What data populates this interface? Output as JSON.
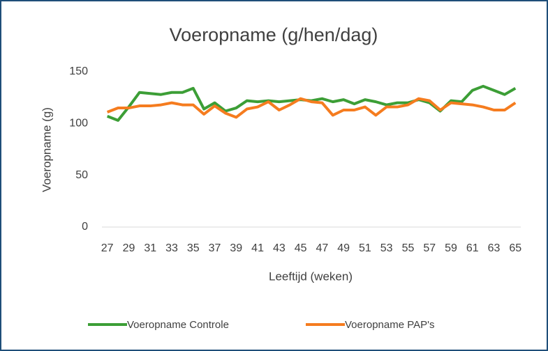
{
  "chart_data": {
    "type": "line",
    "title": "Voeropname (g/hen/dag)",
    "x_label": "Leeftijd (weken)",
    "y_label": "Voeropname (g)",
    "categories": [
      "27",
      null,
      "29",
      null,
      "31",
      null,
      "33",
      null,
      "35",
      null,
      "37",
      null,
      "39",
      null,
      "41",
      null,
      "43",
      null,
      "45",
      null,
      "47",
      null,
      "49",
      null,
      "51",
      null,
      "53",
      null,
      "55",
      null,
      "57",
      null,
      "59",
      null,
      "61",
      null,
      "63",
      null,
      "65"
    ],
    "series": [
      {
        "name": "Voeropname Controle",
        "color": "#3c9e36",
        "values": [
          107,
          103,
          116,
          130,
          129,
          128,
          130,
          130,
          134,
          114,
          120,
          112,
          115,
          122,
          121,
          122,
          121,
          122,
          123,
          122,
          124,
          121,
          123,
          119,
          123,
          121,
          118,
          120,
          120,
          123,
          120,
          112,
          122,
          121,
          132,
          136,
          132,
          128,
          134
        ]
      },
      {
        "name": "Voeropname PAP's",
        "color": "#f57c1f",
        "values": [
          111,
          115,
          115,
          117,
          117,
          118,
          120,
          118,
          118,
          109,
          117,
          110,
          106,
          114,
          116,
          121,
          113,
          118,
          124,
          121,
          120,
          108,
          113,
          113,
          116,
          108,
          116,
          116,
          118,
          124,
          122,
          113,
          120,
          119,
          118,
          116,
          113,
          113,
          120
        ]
      }
    ],
    "ylim": [
      0,
      150
    ],
    "yticks": [
      0,
      50,
      100,
      150
    ],
    "grid": false,
    "legend": "bottom"
  }
}
